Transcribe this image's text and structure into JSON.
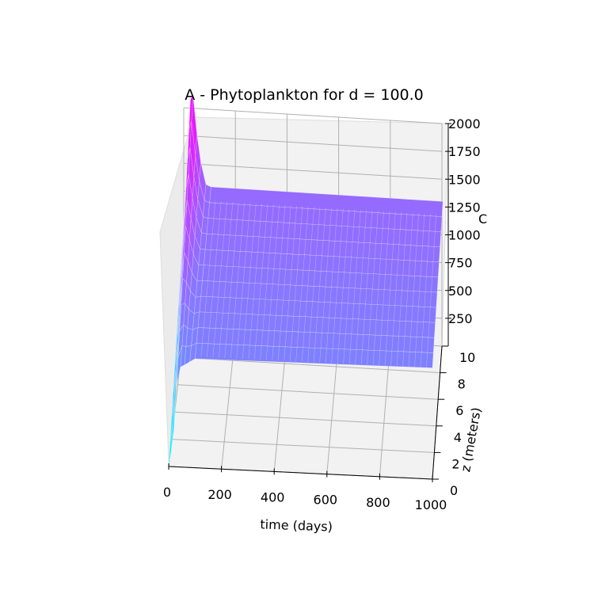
{
  "chart_data": {
    "type": "surface",
    "title": "A - Phytoplankton for d = 100.0",
    "xlabel": "time (days)",
    "ylabel": "z (meters)",
    "zlabel": "C",
    "xlim": [
      0,
      1000
    ],
    "ylim": [
      0,
      10
    ],
    "zlim": [
      0,
      2000
    ],
    "x_ticks": [
      "0",
      "200",
      "400",
      "600",
      "800",
      "1000"
    ],
    "y_ticks": [
      "0",
      "2",
      "4",
      "6",
      "8",
      "10"
    ],
    "z_ticks": [
      "250",
      "500",
      "750",
      "1000",
      "1250",
      "1500",
      "1750",
      "2000"
    ],
    "colormap": [
      "#00ffff",
      "#ff00ff"
    ],
    "grid": true,
    "surface": {
      "time": [
        0,
        10,
        20,
        30,
        45,
        60,
        80,
        100,
        1000
      ],
      "depth": [
        0,
        1,
        2,
        3,
        4,
        5,
        6,
        7,
        8,
        9,
        10,
        11
      ],
      "upper_depth_concentration": [
        1100,
        1500,
        1950,
        2000,
        1650,
        1400,
        1200,
        1180,
        1180
      ],
      "lower_depth_concentration": [
        0,
        150,
        350,
        750,
        900,
        920,
        950,
        980,
        1000
      ]
    }
  }
}
